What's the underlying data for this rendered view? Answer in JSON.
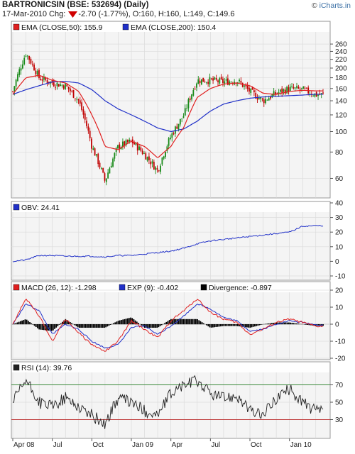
{
  "header": {
    "title": "BARTRONICSIN (BSE: 532694) (Daily)",
    "date": "17-Mar-2010 Chg:",
    "change": "-2.70 (-1.77%)",
    "ohlc": ", O:160, H:160, L:149, C:149.6",
    "brand_prefix": "© ",
    "brand_name": "iCharts.in"
  },
  "colors": {
    "up_candle": "#1a8a1a",
    "down_candle": "#c00000",
    "ema50": "#e02020",
    "ema200": "#2030c8",
    "obv": "#2030c8",
    "macd": "#e02020",
    "signal": "#2030c8",
    "divergence": "#000000",
    "rsi": "#202020",
    "rsi_upper": "#3a8a3a",
    "rsi_lower": "#c04040",
    "panel_bg": "#f4f4f4"
  },
  "chart_data": [
    {
      "type": "candlestick",
      "panel": "price",
      "legend": [
        {
          "label": "EMA (CLOSE,50): 155.9",
          "color": "#e02020"
        },
        {
          "label": "EMA (CLOSE,200): 150.4",
          "color": "#2030c8"
        }
      ],
      "log_scale": true,
      "ylim": [
        50,
        290
      ],
      "y_ticks": [
        60,
        80,
        100,
        120,
        140,
        160,
        180,
        200,
        220,
        240,
        260
      ],
      "x_ticks": [
        "Apr 08",
        "Jul",
        "Oct",
        "Jan 09",
        "Apr",
        "Jul",
        "Oct",
        "Jan 10"
      ],
      "close_path": [
        [
          "Apr 08",
          155
        ],
        [
          "May 08",
          235
        ],
        [
          "Jun 08",
          180
        ],
        [
          "Jul 08",
          170
        ],
        [
          "Aug 08",
          165
        ],
        [
          "Sep 08",
          140
        ],
        [
          "Oct 08",
          85
        ],
        [
          "Nov 08",
          58
        ],
        [
          "Dec 08",
          85
        ],
        [
          "Jan 09",
          90
        ],
        [
          "Feb 09",
          78
        ],
        [
          "Mar 09",
          65
        ],
        [
          "Apr 09",
          95
        ],
        [
          "May 09",
          120
        ],
        [
          "Jun 09",
          175
        ],
        [
          "Jul 09",
          175
        ],
        [
          "Aug 09",
          172
        ],
        [
          "Sep 09",
          175
        ],
        [
          "Oct 09",
          155
        ],
        [
          "Nov 09",
          140
        ],
        [
          "Dec 09",
          152
        ],
        [
          "Jan 10",
          160
        ],
        [
          "Feb 10",
          158
        ],
        [
          "Mar 10",
          149.6
        ]
      ],
      "ema50_path": [
        [
          "Apr 08",
          150
        ],
        [
          "May 08",
          180
        ],
        [
          "Jun 08",
          185
        ],
        [
          "Jul 08",
          175
        ],
        [
          "Aug 08",
          170
        ],
        [
          "Sep 08",
          155
        ],
        [
          "Oct 08",
          120
        ],
        [
          "Nov 08",
          85
        ],
        [
          "Dec 08",
          82
        ],
        [
          "Jan 09",
          90
        ],
        [
          "Feb 09",
          85
        ],
        [
          "Mar 09",
          75
        ],
        [
          "Apr 09",
          85
        ],
        [
          "May 09",
          105
        ],
        [
          "Jun 09",
          145
        ],
        [
          "Jul 09",
          160
        ],
        [
          "Aug 09",
          168
        ],
        [
          "Sep 09",
          170
        ],
        [
          "Oct 09",
          165
        ],
        [
          "Nov 09",
          152
        ],
        [
          "Dec 09",
          150
        ],
        [
          "Jan 10",
          155
        ],
        [
          "Feb 10",
          157
        ],
        [
          "Mar 10",
          155.9
        ]
      ],
      "ema200_path": [
        [
          "Apr 08",
          150
        ],
        [
          "May 08",
          158
        ],
        [
          "Jun 08",
          165
        ],
        [
          "Jul 08",
          172
        ],
        [
          "Aug 08",
          173
        ],
        [
          "Sep 08",
          170
        ],
        [
          "Oct 08",
          158
        ],
        [
          "Nov 08",
          140
        ],
        [
          "Dec 08",
          128
        ],
        [
          "Jan 09",
          120
        ],
        [
          "Feb 09",
          112
        ],
        [
          "Mar 09",
          104
        ],
        [
          "Apr 09",
          100
        ],
        [
          "May 09",
          103
        ],
        [
          "Jun 09",
          112
        ],
        [
          "Jul 09",
          125
        ],
        [
          "Aug 09",
          135
        ],
        [
          "Sep 09",
          140
        ],
        [
          "Oct 09",
          144
        ],
        [
          "Nov 09",
          146
        ],
        [
          "Dec 09",
          147
        ],
        [
          "Jan 10",
          148
        ],
        [
          "Feb 10",
          149
        ],
        [
          "Mar 10",
          150.4
        ]
      ]
    },
    {
      "type": "line",
      "panel": "obv",
      "legend": [
        {
          "label": "OBV: 24.41",
          "color": "#2030c8"
        }
      ],
      "ylim": [
        -10,
        40
      ],
      "y_ticks": [
        -10,
        0,
        10,
        20,
        30,
        40
      ],
      "series": [
        {
          "name": "OBV",
          "points": [
            [
              "Apr 08",
              0
            ],
            [
              "May 08",
              1
            ],
            [
              "Jun 08",
              4
            ],
            [
              "Jul 08",
              4
            ],
            [
              "Aug 08",
              3.5
            ],
            [
              "Sep 08",
              3.5
            ],
            [
              "Oct 08",
              3.5
            ],
            [
              "Nov 08",
              3
            ],
            [
              "Dec 08",
              4
            ],
            [
              "Jan 09",
              4
            ],
            [
              "Feb 09",
              5
            ],
            [
              "Mar 09",
              6
            ],
            [
              "Apr 09",
              7
            ],
            [
              "May 09",
              9
            ],
            [
              "Jun 09",
              12
            ],
            [
              "Jul 09",
              14
            ],
            [
              "Aug 09",
              15
            ],
            [
              "Sep 09",
              16
            ],
            [
              "Oct 09",
              17
            ],
            [
              "Nov 09",
              18
            ],
            [
              "Dec 09",
              19
            ],
            [
              "Jan 10",
              20
            ],
            [
              "Feb 10",
              24
            ],
            [
              "Mar 10",
              24.41
            ]
          ]
        }
      ]
    },
    {
      "type": "line",
      "panel": "macd",
      "legend": [
        {
          "label": "MACD (26, 12): -1.298",
          "color": "#e02020"
        },
        {
          "label": "EXP (9): -0.402",
          "color": "#2030c8"
        },
        {
          "label": "Divergence: -0.897",
          "color": "#000000"
        }
      ],
      "ylim": [
        -20,
        20
      ],
      "y_ticks": [
        -20,
        -10,
        0,
        10,
        20
      ],
      "macd": [
        [
          "Apr 08",
          0
        ],
        [
          "May 08",
          15
        ],
        [
          "Jun 08",
          5
        ],
        [
          "Jul 08",
          -10
        ],
        [
          "Aug 08",
          3
        ],
        [
          "Sep 08",
          -5
        ],
        [
          "Oct 08",
          -12
        ],
        [
          "Nov 08",
          -16
        ],
        [
          "Dec 08",
          -10
        ],
        [
          "Jan 09",
          2
        ],
        [
          "Feb 09",
          -3
        ],
        [
          "Mar 09",
          -8
        ],
        [
          "Apr 09",
          2
        ],
        [
          "May 09",
          8
        ],
        [
          "Jun 09",
          15
        ],
        [
          "Jul 09",
          7
        ],
        [
          "Aug 09",
          3
        ],
        [
          "Sep 09",
          1
        ],
        [
          "Oct 09",
          -6
        ],
        [
          "Nov 09",
          -3
        ],
        [
          "Dec 09",
          1
        ],
        [
          "Jan 10",
          3
        ],
        [
          "Feb 10",
          1
        ],
        [
          "Mar 10",
          -1.298
        ]
      ],
      "signal": [
        [
          "Apr 08",
          0
        ],
        [
          "May 08",
          12
        ],
        [
          "Jun 08",
          8
        ],
        [
          "Jul 08",
          -6
        ],
        [
          "Aug 08",
          0
        ],
        [
          "Sep 08",
          -3
        ],
        [
          "Oct 08",
          -10
        ],
        [
          "Nov 08",
          -14
        ],
        [
          "Dec 08",
          -12
        ],
        [
          "Jan 09",
          -2
        ],
        [
          "Feb 09",
          -1
        ],
        [
          "Mar 09",
          -6
        ],
        [
          "Apr 09",
          -1
        ],
        [
          "May 09",
          5
        ],
        [
          "Jun 09",
          12
        ],
        [
          "Jul 09",
          9
        ],
        [
          "Aug 09",
          4
        ],
        [
          "Sep 09",
          2
        ],
        [
          "Oct 09",
          -4
        ],
        [
          "Nov 09",
          -3
        ],
        [
          "Dec 09",
          0
        ],
        [
          "Jan 10",
          2
        ],
        [
          "Feb 10",
          1
        ],
        [
          "Mar 10",
          -0.402
        ]
      ]
    },
    {
      "type": "line",
      "panel": "rsi",
      "legend": [
        {
          "label": "RSI (14): 39.76",
          "color": "#202020"
        }
      ],
      "ylim": [
        10,
        90
      ],
      "y_ticks": [
        30,
        50,
        70
      ],
      "bands": [
        70,
        30
      ],
      "series": [
        {
          "name": "RSI",
          "points": [
            [
              "Apr 08",
              50
            ],
            [
              "May 08",
              75
            ],
            [
              "Jun 08",
              50
            ],
            [
              "Jul 08",
              45
            ],
            [
              "Aug 08",
              55
            ],
            [
              "Sep 08",
              45
            ],
            [
              "Oct 08",
              35
            ],
            [
              "Nov 08",
              25
            ],
            [
              "Dec 08",
              55
            ],
            [
              "Jan 09",
              50
            ],
            [
              "Feb 09",
              40
            ],
            [
              "Mar 09",
              35
            ],
            [
              "Apr 09",
              60
            ],
            [
              "May 09",
              70
            ],
            [
              "Jun 09",
              75
            ],
            [
              "Jul 09",
              60
            ],
            [
              "Aug 09",
              55
            ],
            [
              "Sep 09",
              58
            ],
            [
              "Oct 09",
              40
            ],
            [
              "Nov 09",
              35
            ],
            [
              "Dec 09",
              55
            ],
            [
              "Jan 10",
              65
            ],
            [
              "Feb 10",
              50
            ],
            [
              "Mar 10",
              39.76
            ]
          ]
        }
      ]
    }
  ]
}
